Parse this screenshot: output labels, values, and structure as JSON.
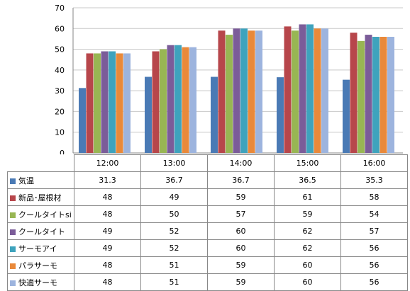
{
  "chart_data": {
    "type": "bar",
    "categories": [
      "12:00",
      "13:00",
      "14:00",
      "15:00",
      "16:00"
    ],
    "ylim": [
      0,
      70
    ],
    "yticks": [
      0,
      10,
      20,
      30,
      40,
      50,
      60,
      70
    ],
    "grid": true,
    "legend": "data table (left of rows)",
    "series": [
      {
        "name": "気温",
        "color": "#4a7ab5",
        "values": [
          31.3,
          36.7,
          36.7,
          36.5,
          35.3
        ]
      },
      {
        "name": "新品･屋根材",
        "color": "#b7464b",
        "values": [
          48,
          49,
          59,
          61,
          58
        ]
      },
      {
        "name": "クールタイトsi",
        "color": "#98b653",
        "values": [
          48,
          50,
          57,
          59,
          54
        ]
      },
      {
        "name": "クールタイト",
        "color": "#7b5c99",
        "values": [
          49,
          52,
          60,
          62,
          57
        ]
      },
      {
        "name": "サーモアイ",
        "color": "#3ea3bd",
        "values": [
          49,
          52,
          60,
          62,
          56
        ]
      },
      {
        "name": "パラサーモ",
        "color": "#e9893a",
        "values": [
          48,
          51,
          59,
          60,
          56
        ]
      },
      {
        "name": "快適サーモ",
        "color": "#9db4de",
        "values": [
          48,
          51,
          59,
          60,
          56
        ]
      }
    ]
  }
}
